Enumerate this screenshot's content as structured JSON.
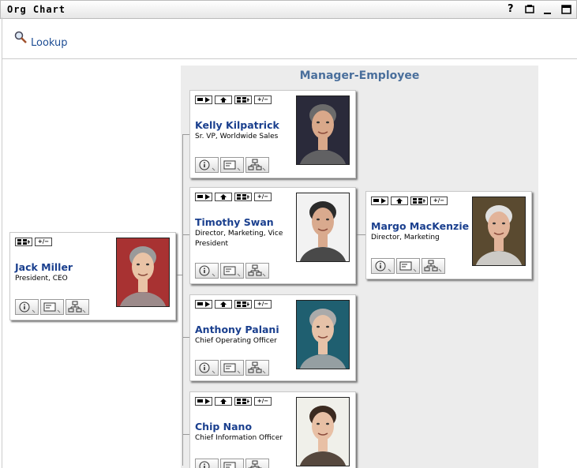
{
  "header": {
    "title": "Org Chart",
    "help": "?"
  },
  "lookup": {
    "label": "Lookup"
  },
  "panel": {
    "title": "Manager-Employee"
  },
  "toggle_label": "+/−",
  "root": {
    "name": "Jack Miller",
    "title": "President, CEO"
  },
  "employees": [
    {
      "name": "Kelly Kilpatrick",
      "title": "Sr. VP, Worldwide Sales"
    },
    {
      "name": "Timothy Swan",
      "title": "Director, Marketing, Vice President"
    },
    {
      "name": "Anthony Palani",
      "title": "Chief Operating Officer"
    },
    {
      "name": "Chip Nano",
      "title": "Chief Information Officer"
    }
  ],
  "subordinate": {
    "name": "Margo MacKenzie",
    "title": "Director, Marketing"
  }
}
